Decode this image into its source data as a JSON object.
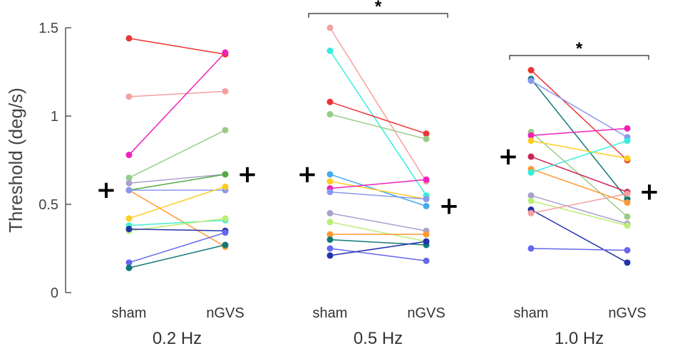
{
  "chart_data": {
    "type": "scatter",
    "title": "",
    "ylabel": "Threshold (deg/s)",
    "xlabel": "",
    "ylim": [
      0,
      1.5
    ],
    "yticks": [
      0,
      0.5,
      1,
      1.5
    ],
    "ytick_labels": [
      "0",
      "0.5",
      "1",
      "1.5"
    ],
    "condition_labels": [
      "sham",
      "nGVS"
    ],
    "groups": [
      {
        "label": "0.2 Hz",
        "mean_marker": "+",
        "means": {
          "sham": 0.58,
          "nGVS": 0.67
        },
        "significance": "",
        "subjects": [
          {
            "color": "#ee3333",
            "sham": 1.44,
            "nGVS": 1.35
          },
          {
            "color": "#f5a0a0",
            "sham": 1.11,
            "nGVS": 1.14
          },
          {
            "color": "#ee22bb",
            "sham": 0.78,
            "nGVS": 1.36
          },
          {
            "color": "#99cc88",
            "sham": 0.65,
            "nGVS": 0.92
          },
          {
            "color": "#aaa0cc",
            "sham": 0.62,
            "nGVS": 0.67
          },
          {
            "color": "#55aa44",
            "sham": 0.58,
            "nGVS": 0.67
          },
          {
            "color": "#ff9933",
            "sham": 0.58,
            "nGVS": 0.26
          },
          {
            "color": "#8899ee",
            "sham": 0.58,
            "nGVS": 0.58
          },
          {
            "color": "#ffcc22",
            "sham": 0.42,
            "nGVS": 0.6
          },
          {
            "color": "#44eecc",
            "sham": 0.38,
            "nGVS": 0.41
          },
          {
            "color": "#bbee77",
            "sham": 0.35,
            "nGVS": 0.42
          },
          {
            "color": "#2233aa",
            "sham": 0.36,
            "nGVS": 0.35
          },
          {
            "color": "#6666ee",
            "sham": 0.17,
            "nGVS": 0.34
          },
          {
            "color": "#117777",
            "sham": 0.14,
            "nGVS": 0.27
          }
        ]
      },
      {
        "label": "0.5 Hz",
        "mean_marker": "+",
        "means": {
          "sham": 0.67,
          "nGVS": 0.49
        },
        "significance": "*",
        "subjects": [
          {
            "color": "#f5a0a0",
            "sham": 1.5,
            "nGVS": 0.63
          },
          {
            "color": "#33eedd",
            "sham": 1.37,
            "nGVS": 0.55
          },
          {
            "color": "#ee3333",
            "sham": 1.08,
            "nGVS": 0.9
          },
          {
            "color": "#99cc88",
            "sham": 1.01,
            "nGVS": 0.87
          },
          {
            "color": "#44aaee",
            "sham": 0.67,
            "nGVS": 0.49
          },
          {
            "color": "#ffcc22",
            "sham": 0.63,
            "nGVS": 0.53
          },
          {
            "color": "#ee22bb",
            "sham": 0.59,
            "nGVS": 0.64
          },
          {
            "color": "#8899ee",
            "sham": 0.57,
            "nGVS": 0.53
          },
          {
            "color": "#aaa0cc",
            "sham": 0.45,
            "nGVS": 0.35
          },
          {
            "color": "#bbee77",
            "sham": 0.4,
            "nGVS": 0.29
          },
          {
            "color": "#ff9933",
            "sham": 0.33,
            "nGVS": 0.33
          },
          {
            "color": "#117777",
            "sham": 0.3,
            "nGVS": 0.27
          },
          {
            "color": "#6666ee",
            "sham": 0.25,
            "nGVS": 0.18
          },
          {
            "color": "#2233aa",
            "sham": 0.21,
            "nGVS": 0.29
          }
        ]
      },
      {
        "label": "1.0 Hz",
        "mean_marker": "+",
        "means": {
          "sham": 0.77,
          "nGVS": 0.57
        },
        "significance": "*",
        "subjects": [
          {
            "color": "#ee3333",
            "sham": 1.26,
            "nGVS": 0.75
          },
          {
            "color": "#117777",
            "sham": 1.21,
            "nGVS": 0.53
          },
          {
            "color": "#8899ee",
            "sham": 1.2,
            "nGVS": 0.88
          },
          {
            "color": "#99cc88",
            "sham": 0.91,
            "nGVS": 0.43
          },
          {
            "color": "#ee22bb",
            "sham": 0.89,
            "nGVS": 0.93
          },
          {
            "color": "#ffcc22",
            "sham": 0.86,
            "nGVS": 0.76
          },
          {
            "color": "#cc2255",
            "sham": 0.77,
            "nGVS": 0.57
          },
          {
            "color": "#ff9933",
            "sham": 0.7,
            "nGVS": 0.51
          },
          {
            "color": "#33eedd",
            "sham": 0.68,
            "nGVS": 0.86
          },
          {
            "color": "#aaa0cc",
            "sham": 0.55,
            "nGVS": 0.39
          },
          {
            "color": "#bbee77",
            "sham": 0.52,
            "nGVS": 0.38
          },
          {
            "color": "#2233aa",
            "sham": 0.47,
            "nGVS": 0.17
          },
          {
            "color": "#f5a0a0",
            "sham": 0.45,
            "nGVS": 0.56
          },
          {
            "color": "#6666ee",
            "sham": 0.25,
            "nGVS": 0.24
          }
        ]
      }
    ]
  }
}
